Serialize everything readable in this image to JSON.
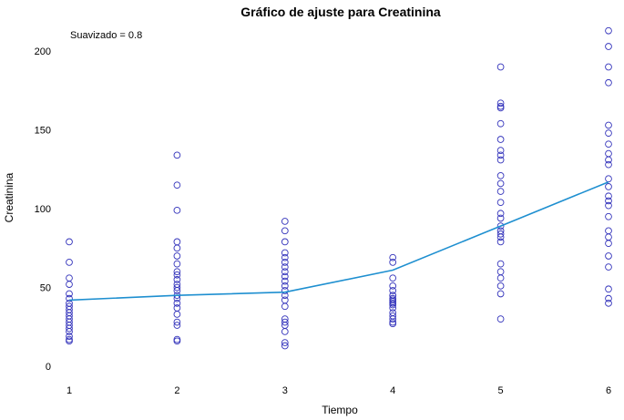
{
  "chart_data": {
    "type": "scatter",
    "title": "Gráfico de ajuste para Creatinina",
    "xlabel": "Tiempo",
    "ylabel": "Creatinina",
    "annotation": "Suavizado = 0.8",
    "xlim": [
      1,
      6
    ],
    "ylim": [
      0,
      215
    ],
    "x_ticks": [
      "1",
      "2",
      "3",
      "4",
      "5",
      "6"
    ],
    "y_ticks": [
      "0",
      "50",
      "100",
      "150",
      "200"
    ],
    "grid": false,
    "legend": "none",
    "colors": {
      "points": "#3333bb",
      "line": "#1e8fd0"
    },
    "series": [
      {
        "type": "scatter",
        "x": [
          1,
          1,
          1,
          1,
          1,
          1,
          1,
          1,
          1,
          1,
          1,
          1,
          1,
          1,
          1,
          1,
          1,
          1,
          1,
          2,
          2,
          2,
          2,
          2,
          2,
          2,
          2,
          2,
          2,
          2,
          2,
          2,
          2,
          2,
          2,
          2,
          2,
          2,
          2,
          2,
          2,
          3,
          3,
          3,
          3,
          3,
          3,
          3,
          3,
          3,
          3,
          3,
          3,
          3,
          3,
          3,
          3,
          3,
          3,
          3,
          3,
          3,
          4,
          4,
          4,
          4,
          4,
          4,
          4,
          4,
          4,
          4,
          4,
          4,
          4,
          4,
          4,
          4,
          4,
          4,
          5,
          5,
          5,
          5,
          5,
          5,
          5,
          5,
          5,
          5,
          5,
          5,
          5,
          5,
          5,
          5,
          5,
          5,
          5,
          5,
          5,
          5,
          5,
          5,
          5,
          5,
          6,
          6,
          6,
          6,
          6,
          6,
          6,
          6,
          6,
          6,
          6,
          6,
          6,
          6,
          6,
          6,
          6,
          6,
          6,
          6,
          6,
          6,
          6,
          6
        ],
        "y": [
          79,
          66,
          56,
          52,
          46,
          43,
          40,
          38,
          36,
          34,
          32,
          30,
          28,
          26,
          24,
          22,
          19,
          17,
          16,
          134,
          115,
          99,
          79,
          75,
          70,
          65,
          60,
          58,
          55,
          52,
          50,
          48,
          45,
          43,
          40,
          37,
          33,
          28,
          26,
          17,
          16,
          92,
          86,
          79,
          72,
          69,
          66,
          63,
          60,
          57,
          54,
          51,
          48,
          45,
          42,
          38,
          30,
          28,
          26,
          22,
          15,
          13,
          69,
          66,
          56,
          51,
          48,
          45,
          43,
          41,
          39,
          37,
          34,
          32,
          30,
          28,
          27,
          45,
          42,
          40,
          190,
          167,
          165,
          164,
          154,
          144,
          137,
          134,
          131,
          121,
          116,
          111,
          104,
          97,
          94,
          89,
          86,
          84,
          82,
          79,
          65,
          60,
          56,
          51,
          46,
          30,
          213,
          203,
          190,
          180,
          153,
          148,
          141,
          135,
          131,
          128,
          119,
          114,
          108,
          105,
          102,
          95,
          86,
          82,
          78,
          70,
          63,
          49,
          43,
          40
        ]
      },
      {
        "type": "line",
        "x": [
          1,
          2,
          3,
          4,
          5,
          6
        ],
        "y": [
          42,
          45,
          47,
          61,
          89,
          117
        ]
      }
    ]
  }
}
